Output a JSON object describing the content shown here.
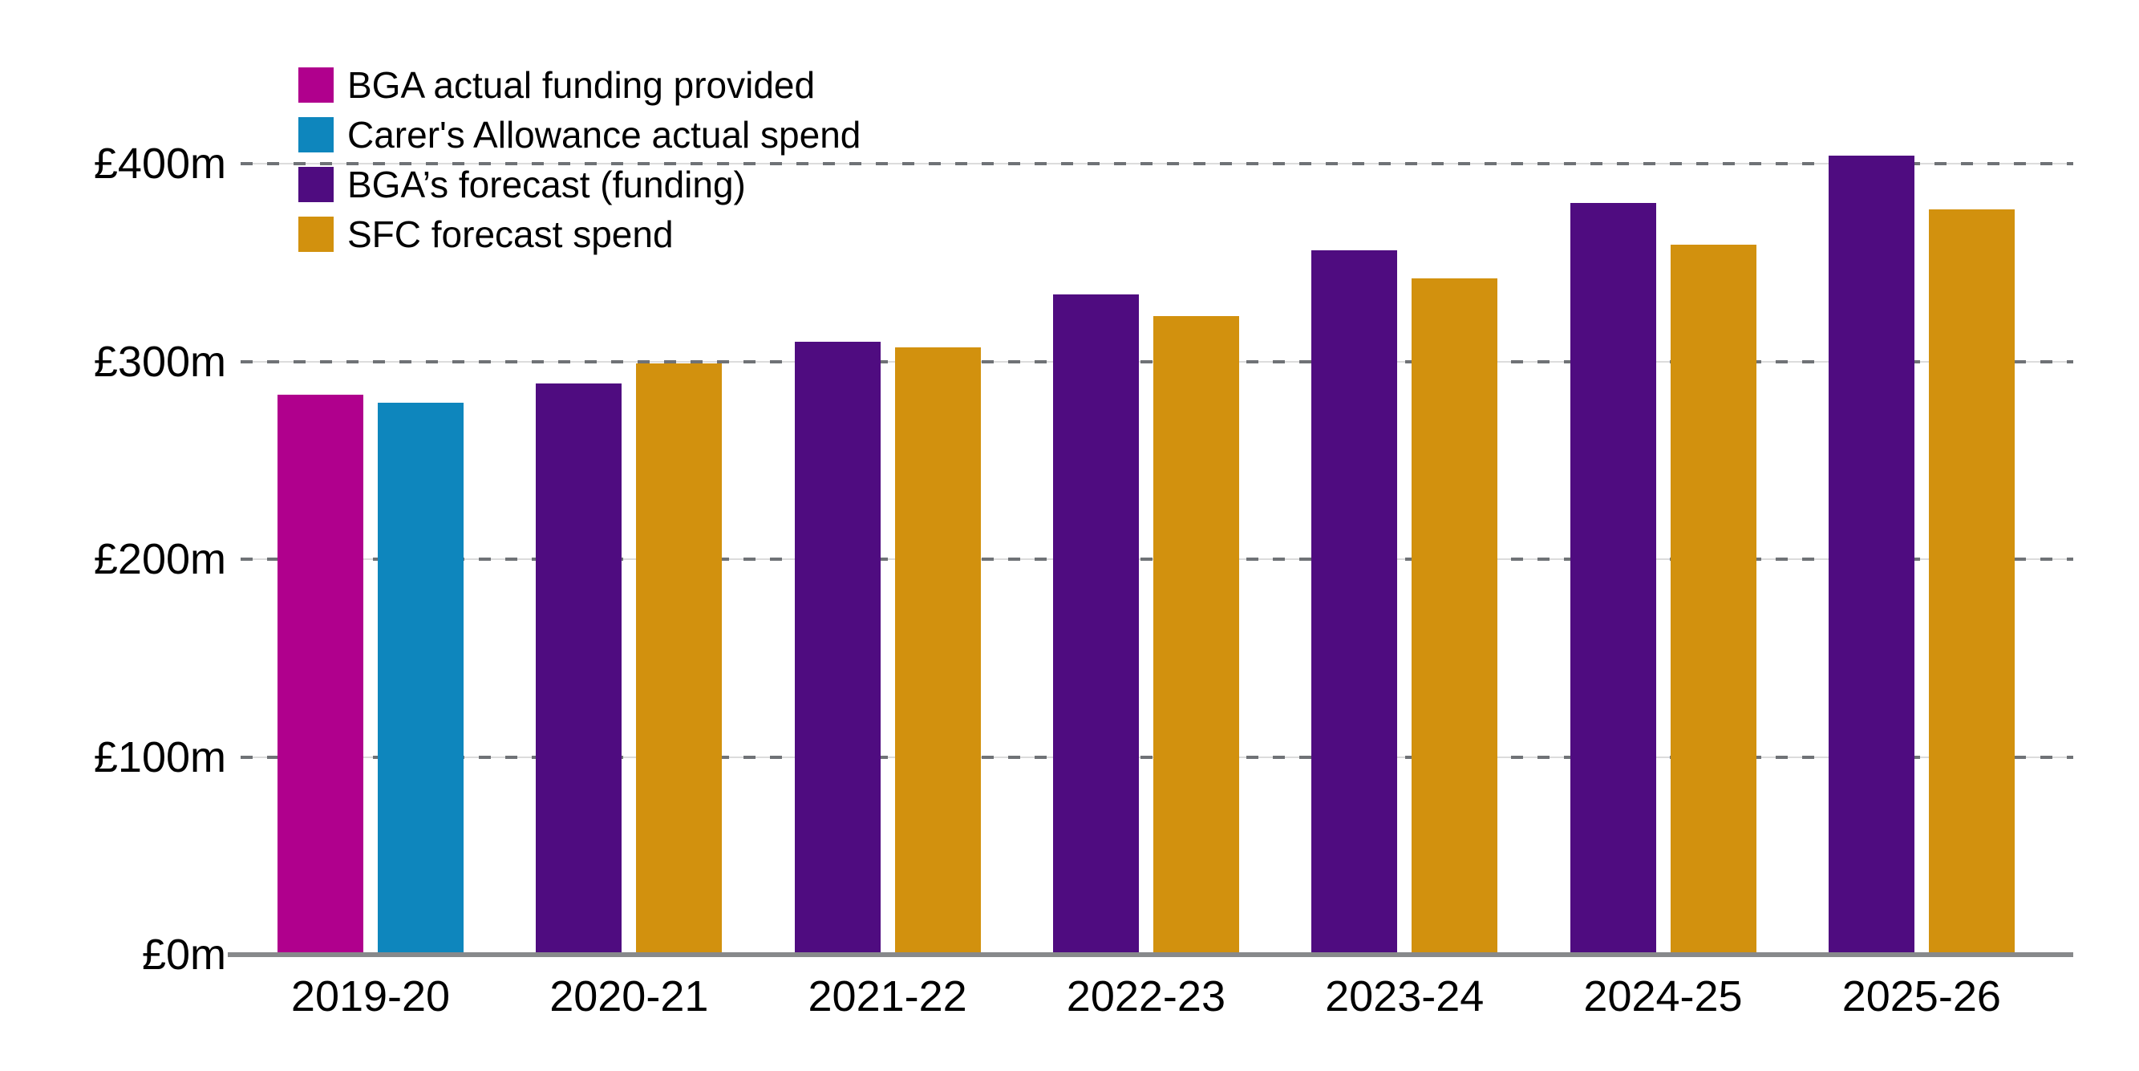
{
  "chart_data": {
    "type": "bar",
    "title": "",
    "categories": [
      "2019-20",
      "2020-21",
      "2021-22",
      "2022-23",
      "2023-24",
      "2024-25",
      "2025-26"
    ],
    "series": [
      {
        "name": "BGA actual funding provided",
        "color": "#b0008d",
        "values": [
          283,
          null,
          null,
          null,
          null,
          null,
          null
        ]
      },
      {
        "name": "Carer's Allowance actual spend",
        "color": "#0e86bd",
        "values": [
          279,
          null,
          null,
          null,
          null,
          null,
          null
        ]
      },
      {
        "name": "BGA’s forecast (funding)",
        "color": "#4f0c80",
        "values": [
          null,
          289,
          310,
          334,
          356,
          380,
          404
        ]
      },
      {
        "name": "SFC forecast spend",
        "color": "#d2910e",
        "values": [
          null,
          299,
          307,
          323,
          342,
          359,
          377
        ]
      }
    ],
    "unit": "£m",
    "y_axis": {
      "ticks": [
        {
          "value": 0,
          "label": "£0m"
        },
        {
          "value": 100,
          "label": "£100m"
        },
        {
          "value": 200,
          "label": "£200m"
        },
        {
          "value": 300,
          "label": "£300m"
        },
        {
          "value": 400,
          "label": "£400m"
        }
      ],
      "ylim": [
        0,
        430
      ],
      "gridlines": "horizontal-dashed"
    },
    "legend_position": "top-left",
    "colors": {
      "grid_dash": "#6f7276",
      "grid_light": "#dcdcdc",
      "axis_line": "#87898b",
      "text": "#000000",
      "background": "#ffffff"
    }
  }
}
